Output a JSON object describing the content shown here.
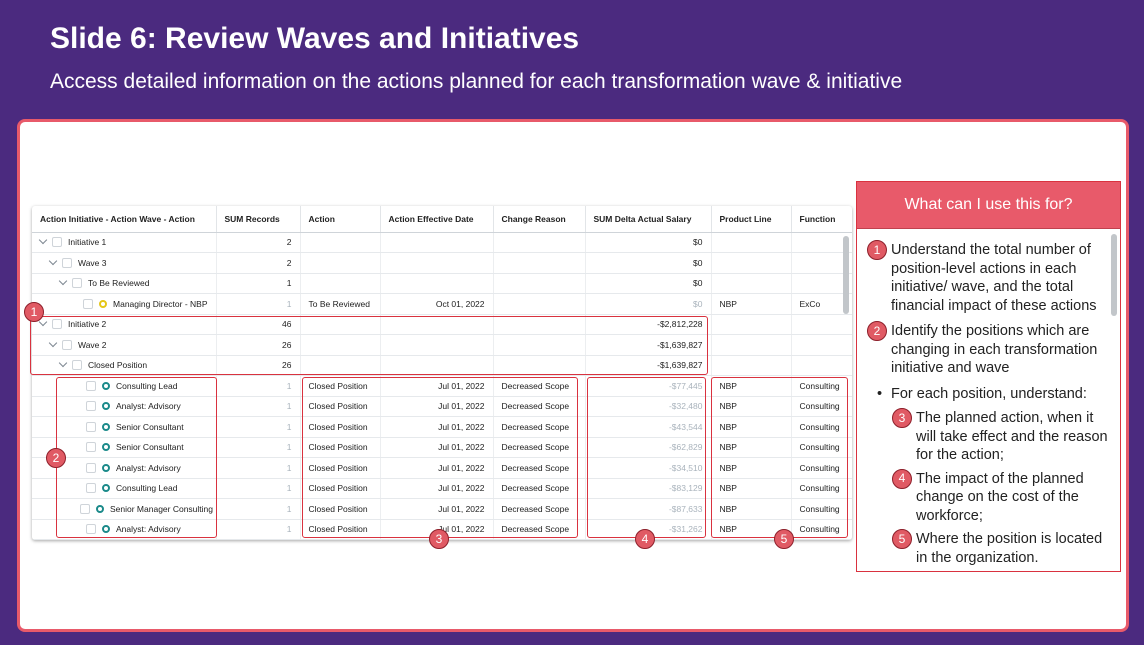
{
  "slide": {
    "title": "Slide 6: Review Waves and Initiatives",
    "subtitle": "Access detailed information on the actions planned for each transformation wave & initiative"
  },
  "table": {
    "columns": [
      "Action Initiative - Action Wave - Action",
      "SUM Records",
      "Action",
      "Action Effective Date",
      "Change Reason",
      "SUM Delta Actual Salary",
      "Product Line",
      "Function"
    ],
    "rows": [
      {
        "label": "Initiative 1",
        "records": "2",
        "action": "",
        "date": "",
        "reason": "",
        "salary": "$0",
        "product": "",
        "function": ""
      },
      {
        "label": "Wave 3",
        "records": "2",
        "action": "",
        "date": "",
        "reason": "",
        "salary": "$0",
        "product": "",
        "function": ""
      },
      {
        "label": "To Be Reviewed",
        "records": "1",
        "action": "",
        "date": "",
        "reason": "",
        "salary": "$0",
        "product": "",
        "function": ""
      },
      {
        "label": "Managing Director - NBP",
        "records": "1",
        "action": "To Be Reviewed",
        "date": "Oct 01, 2022",
        "reason": "",
        "salary": "$0",
        "product": "NBP",
        "function": "ExCo"
      },
      {
        "label": "Initiative 2",
        "records": "46",
        "action": "",
        "date": "",
        "reason": "",
        "salary": "-$2,812,228",
        "product": "",
        "function": ""
      },
      {
        "label": "Wave 2",
        "records": "26",
        "action": "",
        "date": "",
        "reason": "",
        "salary": "-$1,639,827",
        "product": "",
        "function": ""
      },
      {
        "label": "Closed Position",
        "records": "26",
        "action": "",
        "date": "",
        "reason": "",
        "salary": "-$1,639,827",
        "product": "",
        "function": ""
      },
      {
        "label": "Consulting Lead",
        "records": "1",
        "action": "Closed Position",
        "date": "Jul 01, 2022",
        "reason": "Decreased Scope",
        "salary": "-$77,445",
        "product": "NBP",
        "function": "Consulting"
      },
      {
        "label": "Analyst: Advisory",
        "records": "1",
        "action": "Closed Position",
        "date": "Jul 01, 2022",
        "reason": "Decreased Scope",
        "salary": "-$32,480",
        "product": "NBP",
        "function": "Consulting"
      },
      {
        "label": "Senior Consultant",
        "records": "1",
        "action": "Closed Position",
        "date": "Jul 01, 2022",
        "reason": "Decreased Scope",
        "salary": "-$43,544",
        "product": "NBP",
        "function": "Consulting"
      },
      {
        "label": "Senior Consultant",
        "records": "1",
        "action": "Closed Position",
        "date": "Jul 01, 2022",
        "reason": "Decreased Scope",
        "salary": "-$62,829",
        "product": "NBP",
        "function": "Consulting"
      },
      {
        "label": "Analyst: Advisory",
        "records": "1",
        "action": "Closed Position",
        "date": "Jul 01, 2022",
        "reason": "Decreased Scope",
        "salary": "-$34,510",
        "product": "NBP",
        "function": "Consulting"
      },
      {
        "label": "Consulting Lead",
        "records": "1",
        "action": "Closed Position",
        "date": "Jul 01, 2022",
        "reason": "Decreased Scope",
        "salary": "-$83,129",
        "product": "NBP",
        "function": "Consulting"
      },
      {
        "label": "Senior Manager Consulting",
        "records": "1",
        "action": "Closed Position",
        "date": "Jul 01, 2022",
        "reason": "Decreased Scope",
        "salary": "-$87,633",
        "product": "NBP",
        "function": "Consulting"
      },
      {
        "label": "Analyst: Advisory",
        "records": "1",
        "action": "Closed Position",
        "date": "Jul 01, 2022",
        "reason": "Decreased Scope",
        "salary": "-$31,262",
        "product": "NBP",
        "function": "Consulting"
      }
    ]
  },
  "badges": [
    "1",
    "2",
    "3",
    "4",
    "5"
  ],
  "panel": {
    "title": "What can I use this for?",
    "item1": "Understand the total number of position-level actions in each initiative/ wave, and the total financial impact of these actions",
    "item2": "Identify the positions which are changing in each transformation initiative and wave",
    "bullet": "For each position, understand:",
    "item3": "The planned action, when it will take effect and the reason for the action;",
    "item4": "The impact of the planned change on the cost of the workforce;",
    "item5": "Where the position is located in the organization."
  },
  "colors": {
    "background": "#4b2a7f",
    "accent": "#e85a6a",
    "highlight": "#d9323f",
    "teal": "#1b8a8a"
  }
}
